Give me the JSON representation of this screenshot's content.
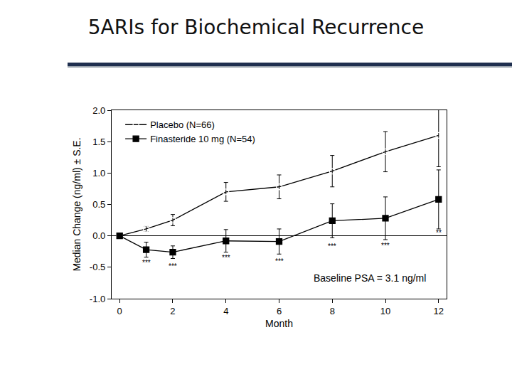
{
  "chart_data": {
    "type": "line",
    "title": "5ARIs for Biochemical Recurrence",
    "x_label": "Month",
    "y_label": "Median Change (ng/ml) ± S.E.",
    "x": [
      0,
      1,
      2,
      4,
      6,
      8,
      10,
      12
    ],
    "series": [
      {
        "name": "Placebo (N=66)",
        "color": "#000000",
        "marker": "circle-open",
        "line_style": "solid",
        "values": [
          0,
          0.11,
          0.25,
          0.7,
          0.78,
          1.03,
          1.34,
          1.6
        ],
        "errors": [
          0,
          0.04,
          0.09,
          0.15,
          0.19,
          0.25,
          0.32,
          0.5
        ]
      },
      {
        "name": "Finasteride 10 mg (N=54)",
        "color": "#000000",
        "marker": "square",
        "line_style": "solid",
        "values": [
          0,
          -0.22,
          -0.26,
          -0.08,
          -0.09,
          0.24,
          0.28,
          0.58
        ],
        "errors": [
          0,
          0.12,
          0.1,
          0.18,
          0.2,
          0.27,
          0.34,
          0.47
        ]
      }
    ],
    "xlim": [
      -0.3,
      12.3
    ],
    "xticks": [
      0,
      2,
      4,
      6,
      8,
      10,
      12
    ],
    "ylim": [
      -1,
      2
    ],
    "yticks": [
      {
        "value": -1,
        "label": "-1.0"
      },
      {
        "value": -0.5,
        "label": "-0.5"
      },
      {
        "value": 0,
        "label": "0.0"
      },
      {
        "value": 0.5,
        "label": "0.5"
      },
      {
        "value": 1,
        "label": "1.0"
      },
      {
        "value": 1.5,
        "label": "1.5"
      },
      {
        "value": 2,
        "label": "2.0"
      }
    ],
    "grid": false,
    "legend": "top left",
    "annotations": [
      {
        "text": "***",
        "x": 1,
        "y": -0.43
      },
      {
        "text": "***",
        "x": 2,
        "y": -0.49
      },
      {
        "text": "***",
        "x": 4,
        "y": -0.35
      },
      {
        "text": "***",
        "x": 6,
        "y": -0.4
      },
      {
        "text": "***",
        "x": 8,
        "y": -0.17
      },
      {
        "text": "***",
        "x": 10,
        "y": -0.16
      },
      {
        "text": "**",
        "x": 12,
        "y": 0.05
      },
      {
        "text": "Baseline PSA = 3.1 ng/ml",
        "x": 9.4,
        "y": -0.67
      }
    ]
  }
}
